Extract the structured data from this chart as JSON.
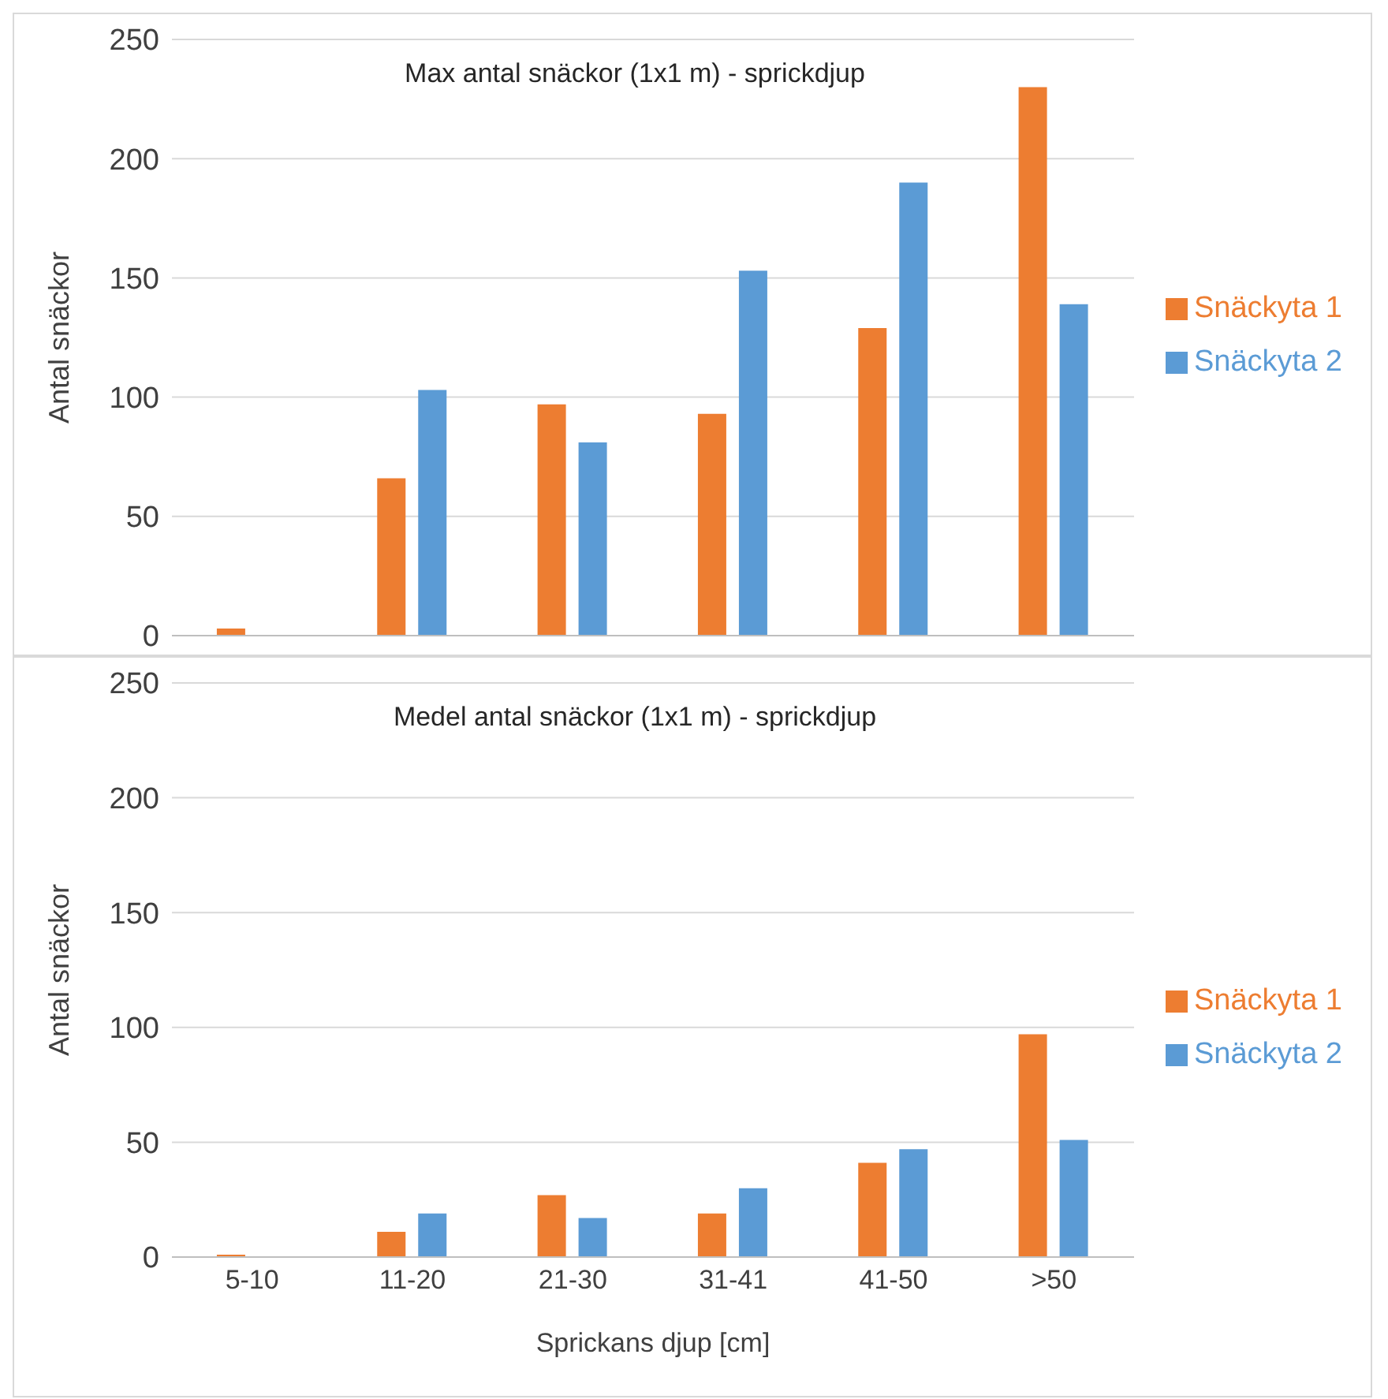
{
  "chart_data": [
    {
      "type": "bar",
      "title": "Max antal snäckor (1x1 m) - sprickdjup",
      "ylabel": "Antal snäckor",
      "categories": [
        null,
        null,
        null,
        null,
        null,
        null
      ],
      "series": [
        {
          "name": "Snäckyta 1",
          "color": "#ed7d31",
          "values": [
            3,
            66,
            97,
            93,
            129,
            230
          ]
        },
        {
          "name": "Snäckyta 2",
          "color": "#5b9bd5",
          "values": [
            0,
            103,
            81,
            153,
            190,
            139
          ]
        }
      ],
      "ylim": [
        0,
        250
      ],
      "yticks": [
        0,
        50,
        100,
        150,
        200,
        250
      ],
      "grid": "y",
      "legend": "right",
      "tick_labels": "y"
    },
    {
      "type": "bar",
      "title": "Medel antal snäckor (1x1 m) - sprickdjup",
      "ylabel": "Antal snäckor",
      "xlabel": "Sprickans djup  [cm]",
      "categories": [
        "5-10",
        "11-20",
        "21-30",
        "31-41",
        "41-50",
        ">50"
      ],
      "series": [
        {
          "name": "Snäckyta 1",
          "color": "#ed7d31",
          "values": [
            1,
            11,
            27,
            19,
            41,
            97
          ]
        },
        {
          "name": "Snäckyta 2",
          "color": "#5b9bd5",
          "values": [
            0,
            19,
            17,
            30,
            47,
            51
          ]
        }
      ],
      "ylim": [
        0,
        250
      ],
      "yticks": [
        0,
        50,
        100,
        150,
        200,
        250
      ],
      "grid": "y",
      "legend": "right"
    }
  ]
}
